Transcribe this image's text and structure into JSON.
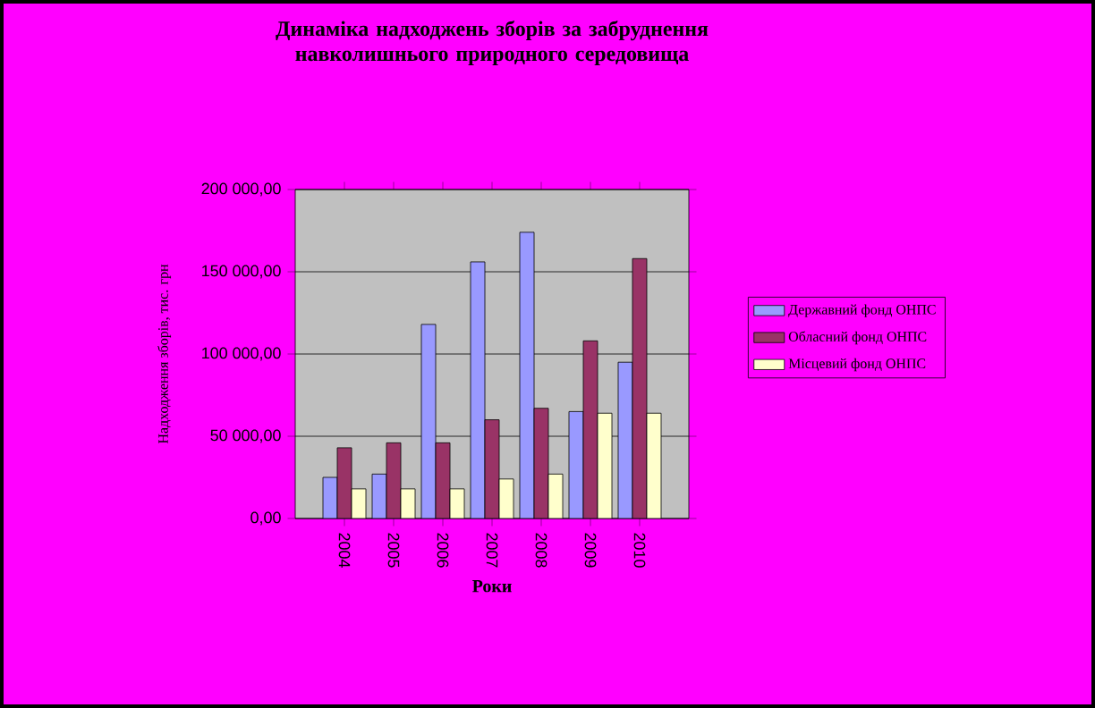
{
  "chart_data": {
    "type": "bar",
    "title": "Динаміка надходжень зборів за забруднення навколишнього природного середовища",
    "xlabel": "Роки",
    "ylabel": "Надходження зборів, тис. грн",
    "categories": [
      "2004",
      "2005",
      "2006",
      "2007",
      "2008",
      "2009",
      "2010"
    ],
    "series": [
      {
        "name": "Державний фонд ОНПС",
        "color": "#9999ff",
        "values": [
          25000,
          27000,
          118000,
          156000,
          174000,
          65000,
          95000
        ]
      },
      {
        "name": "Обласний фонд ОНПС",
        "color": "#993366",
        "values": [
          43000,
          46000,
          46000,
          60000,
          67000,
          108000,
          158000
        ]
      },
      {
        "name": "Місцевий фонд ОНПС",
        "color": "#ffffcc",
        "values": [
          18000,
          18000,
          18000,
          24000,
          27000,
          64000,
          64000
        ]
      }
    ],
    "ylim": [
      0,
      200000
    ],
    "yticks": [
      {
        "value": 0,
        "label": "0,00"
      },
      {
        "value": 50000,
        "label": "50 000,00"
      },
      {
        "value": 100000,
        "label": "100 000,00"
      },
      {
        "value": 150000,
        "label": "150 000,00"
      },
      {
        "value": 200000,
        "label": "200 000,00"
      }
    ],
    "grid": "y",
    "legend": "right"
  }
}
